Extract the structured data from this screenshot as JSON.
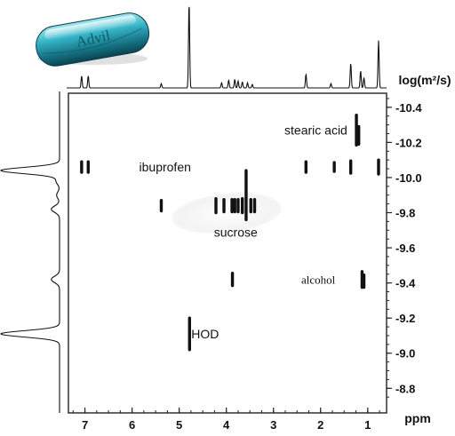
{
  "chart_data": {
    "type": "scatter",
    "title": "",
    "xlabel": "ppm",
    "ylabel": "log(m²/s)",
    "xlim": [
      7.35,
      0.6
    ],
    "ylim": [
      -8.66,
      -10.48
    ],
    "x_ticks": [
      7,
      6,
      5,
      4,
      3,
      2,
      1
    ],
    "x_tick_labels": [
      "7",
      "6",
      "5",
      "4",
      "3",
      "2",
      "1"
    ],
    "y_ticks": [
      -10.4,
      -10.2,
      -10.0,
      -9.8,
      -9.6,
      -9.4,
      -9.2,
      -9.0,
      -8.8
    ],
    "y_tick_labels": [
      "-10.4",
      "-10.2",
      "-10.0",
      "-9.8",
      "-9.6",
      "-9.4",
      "-9.2",
      "-9.0",
      "-8.8"
    ],
    "grid": false,
    "inset_label": "Advil",
    "series": [
      {
        "name": "ibuprofen",
        "label_at": [
          5.3,
          -10.06
        ],
        "points": [
          {
            "x": 7.07,
            "y": -10.06,
            "h": 0.06
          },
          {
            "x": 6.93,
            "y": -10.06,
            "h": 0.06
          },
          {
            "x": 2.31,
            "y": -10.06,
            "h": 0.06
          },
          {
            "x": 1.71,
            "y": -10.06,
            "h": 0.05
          },
          {
            "x": 1.36,
            "y": -10.06,
            "h": 0.07
          },
          {
            "x": 0.77,
            "y": -10.06,
            "h": 0.08
          }
        ]
      },
      {
        "name": "sucrose",
        "label_at": [
          3.8,
          -9.69
        ],
        "points": [
          {
            "x": 5.38,
            "y": -9.84,
            "h": 0.06
          },
          {
            "x": 4.22,
            "y": -9.84,
            "h": 0.08
          },
          {
            "x": 4.05,
            "y": -9.84,
            "h": 0.07
          },
          {
            "x": 3.88,
            "y": -9.84,
            "h": 0.07
          },
          {
            "x": 3.82,
            "y": -9.84,
            "h": 0.07
          },
          {
            "x": 3.75,
            "y": -9.84,
            "h": 0.07
          },
          {
            "x": 3.66,
            "y": -9.84,
            "h": 0.08
          },
          {
            "x": 3.58,
            "y": -9.9,
            "h": 0.28
          },
          {
            "x": 3.48,
            "y": -9.84,
            "h": 0.07
          },
          {
            "x": 3.4,
            "y": -9.84,
            "h": 0.07
          }
        ]
      },
      {
        "name": "stearic acid",
        "label_at": [
          2.1,
          -10.27
        ],
        "points": [
          {
            "x": 1.24,
            "y": -10.27,
            "h": 0.17
          },
          {
            "x": 1.19,
            "y": -10.24,
            "h": 0.1
          }
        ]
      },
      {
        "name": "alcohol",
        "label_at": [
          2.05,
          -9.42
        ],
        "points": [
          {
            "x": 3.87,
            "y": -9.42,
            "h": 0.07
          },
          {
            "x": 1.12,
            "y": -9.42,
            "h": 0.09
          },
          {
            "x": 1.08,
            "y": -9.41,
            "h": 0.07
          }
        ]
      },
      {
        "name": "HOD",
        "label_at": [
          4.45,
          -9.11
        ],
        "points": [
          {
            "x": 4.78,
            "y": -9.11,
            "h": 0.18
          }
        ]
      }
    ],
    "projection_1h": {
      "peaks": [
        {
          "x": 7.07,
          "height": 0.14
        },
        {
          "x": 6.93,
          "height": 0.14
        },
        {
          "x": 5.38,
          "height": 0.05
        },
        {
          "x": 4.79,
          "height": 1.0
        },
        {
          "x": 4.1,
          "height": 0.06
        },
        {
          "x": 3.95,
          "height": 0.09
        },
        {
          "x": 3.82,
          "height": 0.1
        },
        {
          "x": 3.75,
          "height": 0.08
        },
        {
          "x": 3.66,
          "height": 0.07
        },
        {
          "x": 3.55,
          "height": 0.06
        },
        {
          "x": 3.45,
          "height": 0.04
        },
        {
          "x": 2.31,
          "height": 0.16
        },
        {
          "x": 1.78,
          "height": 0.05
        },
        {
          "x": 1.36,
          "height": 0.29
        },
        {
          "x": 1.15,
          "height": 0.2
        },
        {
          "x": 1.08,
          "height": 0.12
        },
        {
          "x": 0.77,
          "height": 0.55
        }
      ]
    },
    "projection_diffusion": {
      "peaks": [
        {
          "y": -10.04,
          "height": 1.0
        },
        {
          "y": -9.98,
          "height": 0.06
        },
        {
          "y": -9.9,
          "height": 0.05
        },
        {
          "y": -9.82,
          "height": 0.14
        },
        {
          "y": -9.42,
          "height": 0.14
        },
        {
          "y": -9.11,
          "height": 1.0
        }
      ]
    }
  }
}
